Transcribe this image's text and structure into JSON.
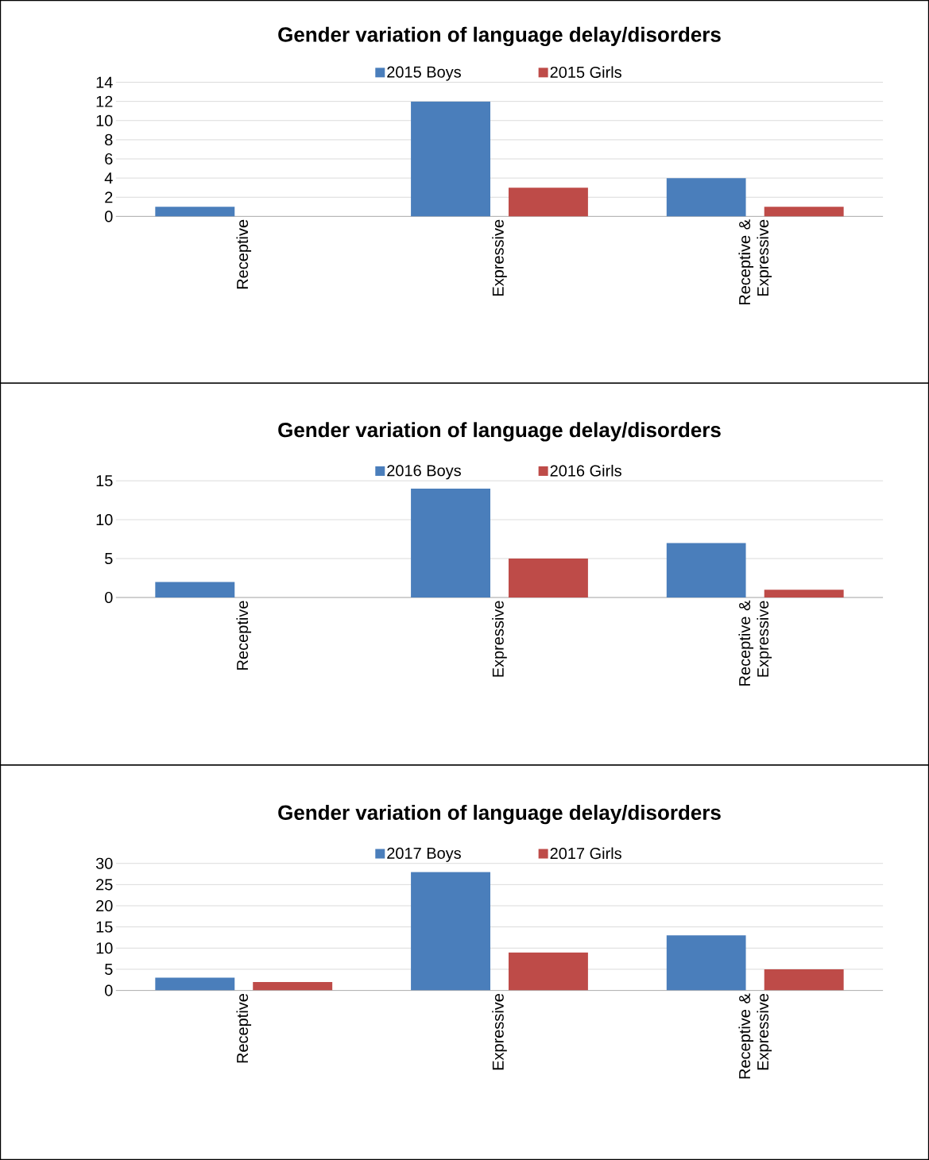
{
  "chart_data": [
    {
      "type": "bar",
      "title": "Gender variation of language delay/disorders",
      "categories": [
        "Receptive",
        "Expressive",
        "Receptive & Expressive"
      ],
      "series": [
        {
          "name": "2015 Boys",
          "color": "#4a7ebb",
          "values": [
            1,
            12,
            4
          ]
        },
        {
          "name": "2015 Girls",
          "color": "#be4b48",
          "values": [
            0,
            3,
            1
          ]
        }
      ],
      "ylim": [
        0,
        14
      ],
      "yticks": [
        0,
        2,
        4,
        6,
        8,
        10,
        12,
        14
      ],
      "grid": "y",
      "legend": "top"
    },
    {
      "type": "bar",
      "title": "Gender variation of language delay/disorders",
      "categories": [
        "Receptive",
        "Expressive",
        "Receptive & Expressive"
      ],
      "series": [
        {
          "name": "2016 Boys",
          "color": "#4a7ebb",
          "values": [
            2,
            14,
            7
          ]
        },
        {
          "name": "2016 Girls",
          "color": "#be4b48",
          "values": [
            0,
            5,
            1
          ]
        }
      ],
      "ylim": [
        0,
        15
      ],
      "yticks": [
        0,
        5,
        10,
        15
      ],
      "grid": "y",
      "legend": "top"
    },
    {
      "type": "bar",
      "title": "Gender variation of language delay/disorders",
      "categories": [
        "Receptive",
        "Expressive",
        "Receptive & Expressive"
      ],
      "series": [
        {
          "name": "2017 Boys",
          "color": "#4a7ebb",
          "values": [
            3,
            28,
            13
          ]
        },
        {
          "name": "2017 Girls",
          "color": "#be4b48",
          "values": [
            2,
            9,
            5
          ]
        }
      ],
      "ylim": [
        0,
        30
      ],
      "yticks": [
        0,
        5,
        10,
        15,
        20,
        25,
        30
      ],
      "grid": "y",
      "legend": "top"
    }
  ]
}
